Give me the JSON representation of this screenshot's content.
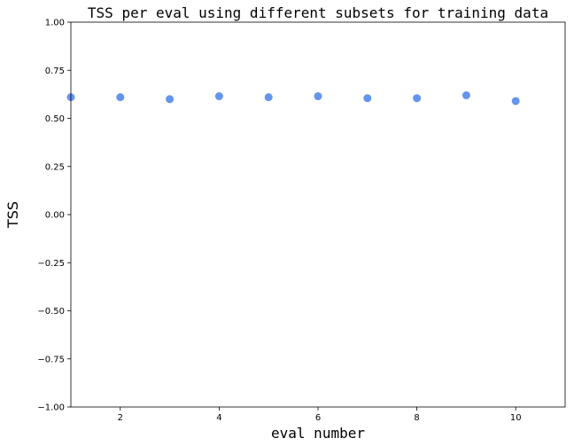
{
  "chart_data": {
    "type": "scatter",
    "title": "TSS per eval using different subsets for training data",
    "xlabel": "eval number",
    "ylabel": "TSS",
    "xlim": [
      1,
      11
    ],
    "ylim": [
      -1.0,
      1.0
    ],
    "x_ticks": [
      2,
      4,
      6,
      8,
      10
    ],
    "x_tick_labels": [
      "2",
      "4",
      "6",
      "8",
      "10"
    ],
    "y_ticks": [
      1.0,
      0.75,
      0.5,
      0.25,
      0.0,
      -0.25,
      -0.5,
      -0.75,
      -1.0
    ],
    "y_tick_labels": [
      "1.00",
      "0.75",
      "0.50",
      "0.25",
      "0.00",
      "−0.25",
      "−0.50",
      "−0.75",
      "−1.00"
    ],
    "grid": false,
    "marker_color": "#6495ED",
    "x": [
      1,
      2,
      3,
      4,
      5,
      6,
      7,
      8,
      9,
      10
    ],
    "y": [
      0.61,
      0.61,
      0.6,
      0.615,
      0.61,
      0.615,
      0.605,
      0.605,
      0.62,
      0.59
    ]
  }
}
